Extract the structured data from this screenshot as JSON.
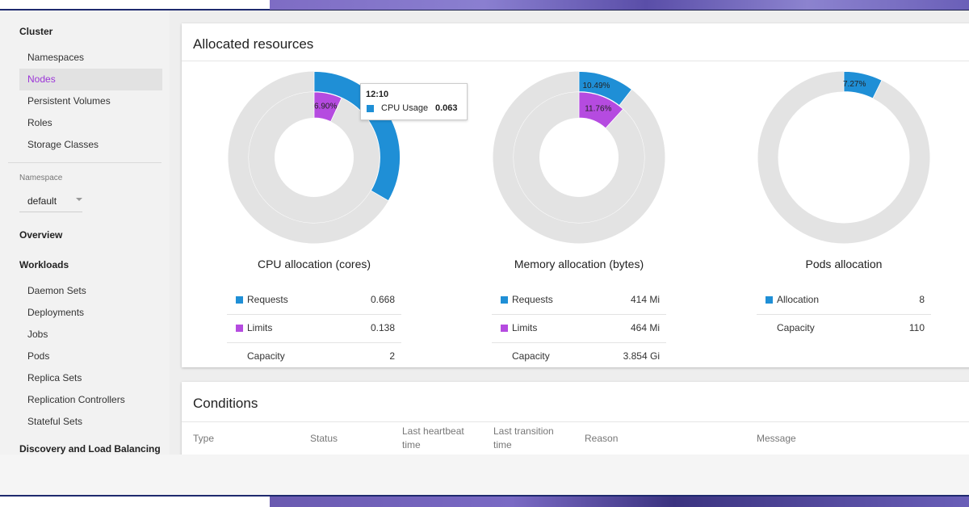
{
  "colors": {
    "requests": "#1f8fd6",
    "limits": "#b54be0",
    "capacity": "#e3e3e3",
    "active_nav": "#9c35d8"
  },
  "sidebar": {
    "cluster_header": "Cluster",
    "cluster_items": [
      "Namespaces",
      "Nodes",
      "Persistent Volumes",
      "Roles",
      "Storage Classes"
    ],
    "active_item": "Nodes",
    "namespace_label": "Namespace",
    "namespace_value": "default",
    "overview": "Overview",
    "workloads_header": "Workloads",
    "workload_items": [
      "Daemon Sets",
      "Deployments",
      "Jobs",
      "Pods",
      "Replica Sets",
      "Replication Controllers",
      "Stateful Sets"
    ],
    "discovery_header": "Discovery and Load Balancing"
  },
  "allocated": {
    "title": "Allocated resources",
    "charts": [
      {
        "title": "CPU allocation (cores)",
        "outer_fraction": 0.334,
        "outer_label": "",
        "inner_fraction": 0.069,
        "inner_label": "6.90%",
        "legend": [
          {
            "label": "Requests",
            "value": "0.668",
            "color": "#1f8fd6"
          },
          {
            "label": "Limits",
            "value": "0.138",
            "color": "#b54be0"
          },
          {
            "label": "Capacity",
            "value": "2",
            "color": ""
          }
        ]
      },
      {
        "title": "Memory allocation (bytes)",
        "outer_fraction": 0.1049,
        "outer_label": "10.49%",
        "inner_fraction": 0.1176,
        "inner_label": "11.76%",
        "legend": [
          {
            "label": "Requests",
            "value": "414 Mi",
            "color": "#1f8fd6"
          },
          {
            "label": "Limits",
            "value": "464 Mi",
            "color": "#b54be0"
          },
          {
            "label": "Capacity",
            "value": "3.854 Gi",
            "color": ""
          }
        ]
      },
      {
        "title": "Pods allocation",
        "outer_fraction": 0.0727,
        "outer_label": "7.27%",
        "inner_fraction": 0,
        "inner_label": "",
        "legend": [
          {
            "label": "Allocation",
            "value": "8",
            "color": "#1f8fd6"
          },
          {
            "label": "Capacity",
            "value": "110",
            "color": ""
          }
        ]
      }
    ],
    "tooltip": {
      "time": "12:10",
      "series": "CPU Usage",
      "value": "0.063"
    }
  },
  "conditions": {
    "title": "Conditions",
    "columns": [
      "Type",
      "Status",
      "Last heartbeat time",
      "Last transition time",
      "Reason",
      "Message"
    ]
  }
}
